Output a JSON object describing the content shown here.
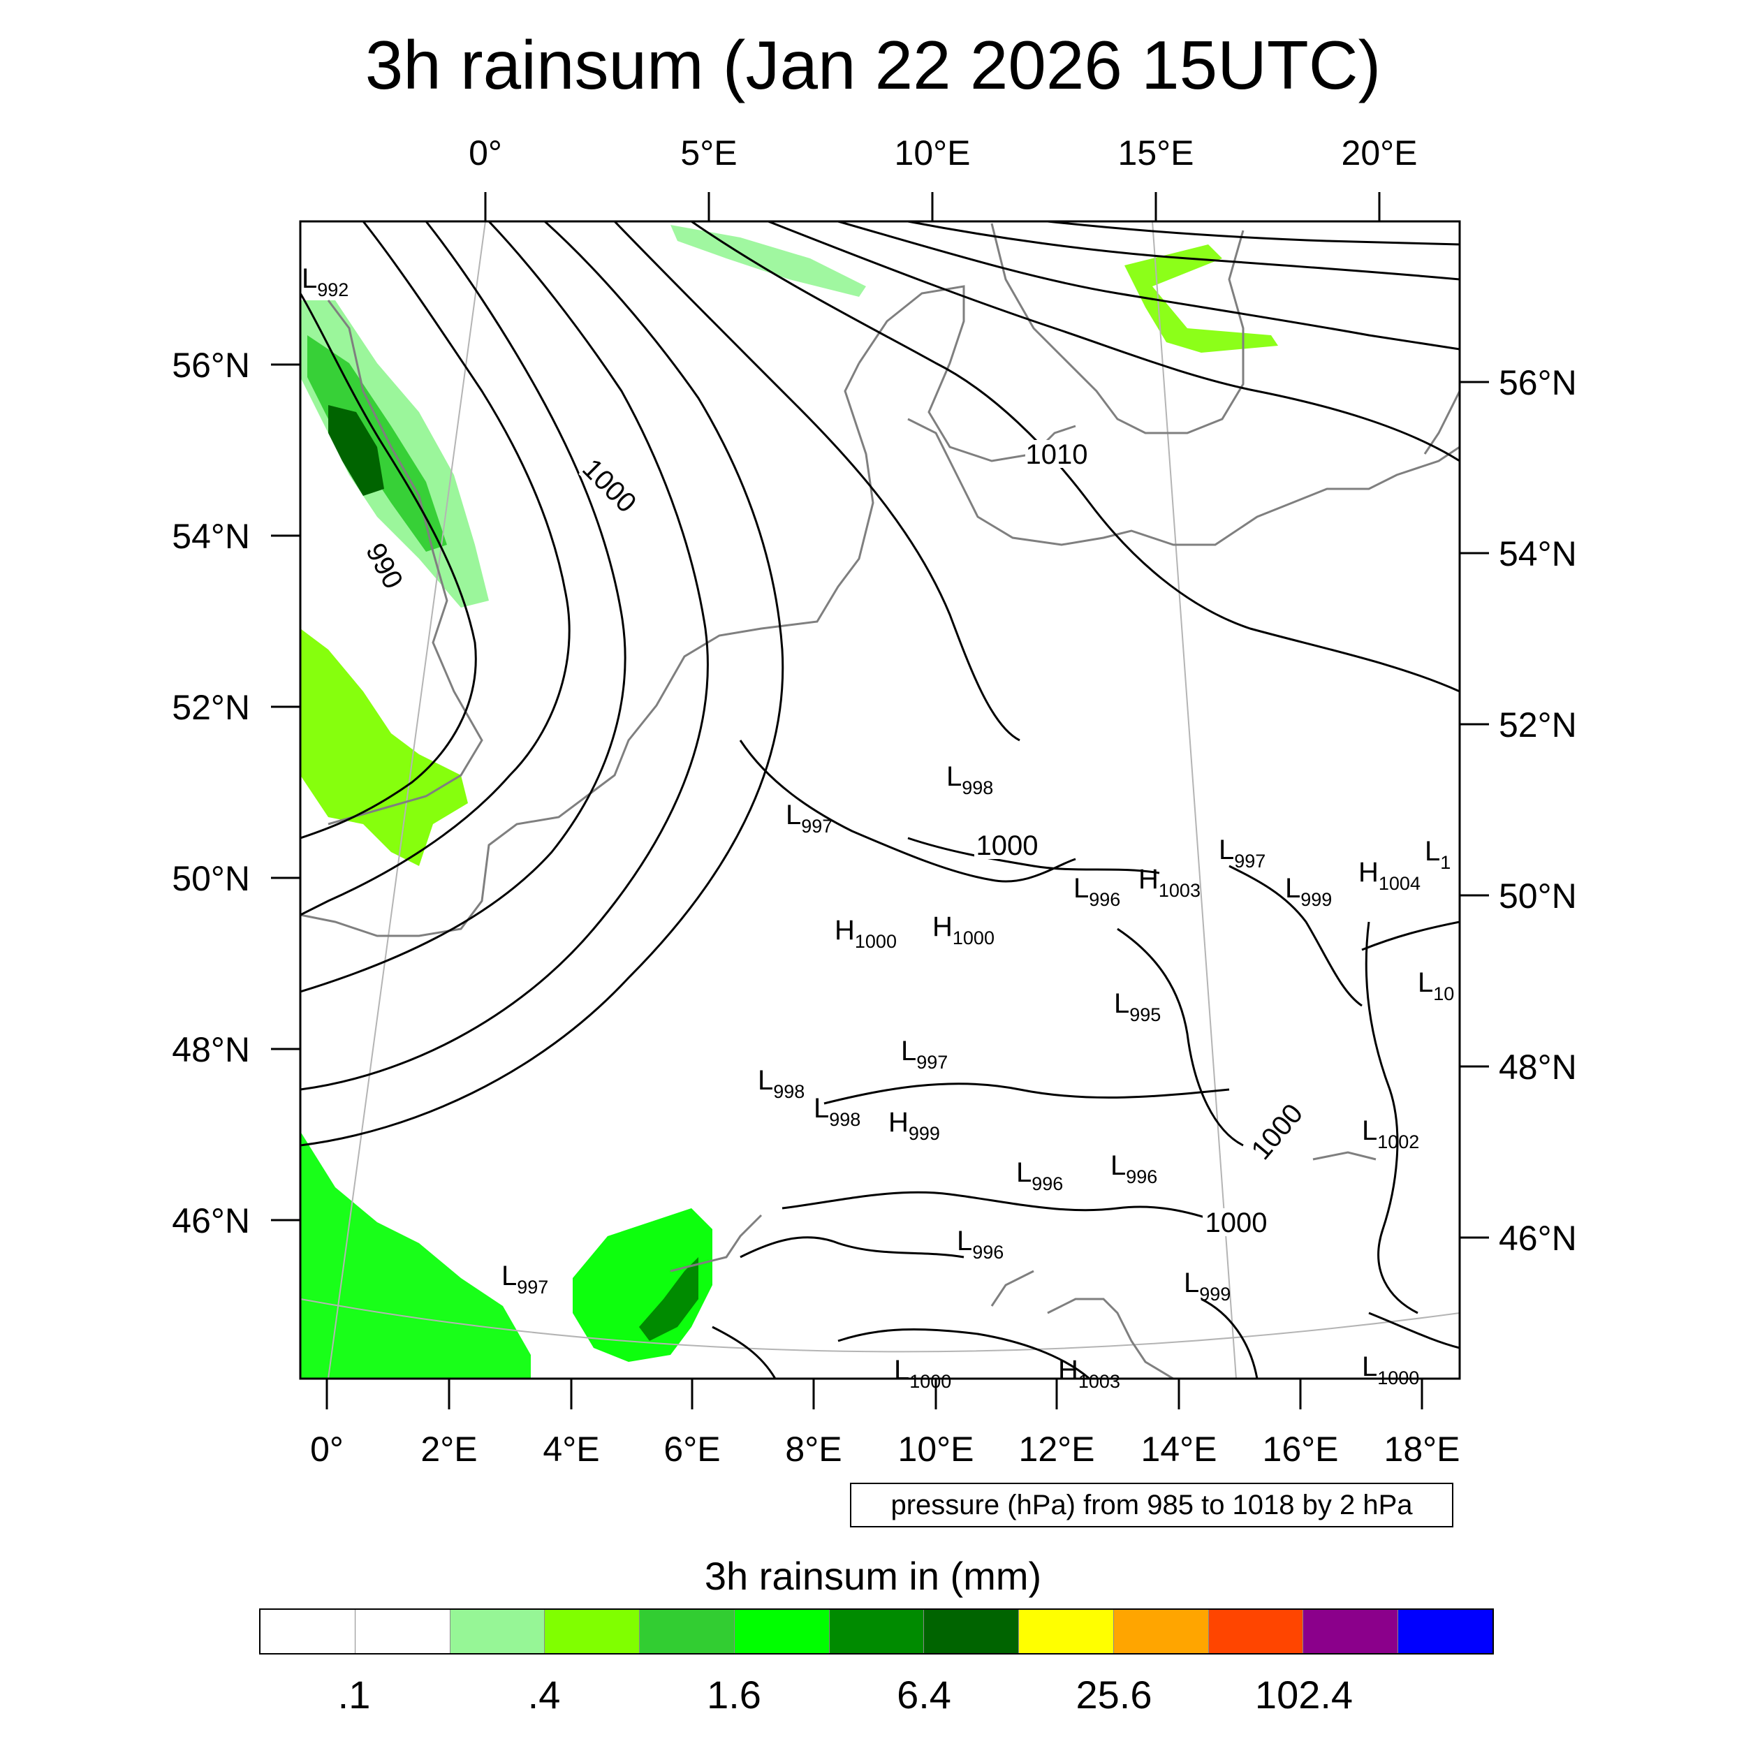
{
  "title": "3h rainsum (Jan 22 2026 15UTC)",
  "pressure_note": "pressure (hPa) from 985 to 1018 by 2 hPa",
  "colorbar": {
    "title": "3h rainsum in (mm)",
    "colors": [
      "#ffffff",
      "#ffffff",
      "#96f696",
      "#80ff00",
      "#32cd32",
      "#00ff00",
      "#008b00",
      "#006400",
      "#ffff00",
      "#ffa500",
      "#ff4500",
      "#8b008b",
      "#0000ff"
    ],
    "labels": [
      {
        "text": ".1",
        "boundary": 1
      },
      {
        "text": ".4",
        "boundary": 3
      },
      {
        "text": "1.6",
        "boundary": 5
      },
      {
        "text": "6.4",
        "boundary": 7
      },
      {
        "text": "25.6",
        "boundary": 9
      },
      {
        "text": "102.4",
        "boundary": 11
      }
    ]
  },
  "axes": {
    "top_lon_labels": [
      "0°",
      "5°E",
      "10°E",
      "15°E",
      "20°E"
    ],
    "bottom_lon_labels": [
      "0°",
      "2°E",
      "4°E",
      "6°E",
      "8°E",
      "10°E",
      "12°E",
      "14°E",
      "16°E",
      "18°E"
    ],
    "left_lat_labels": [
      "56°N",
      "54°N",
      "52°N",
      "50°N",
      "48°N",
      "46°N"
    ],
    "right_lat_labels": [
      "56°N",
      "54°N",
      "52°N",
      "50°N",
      "48°N",
      "46°N"
    ]
  },
  "isobar_labels": [
    {
      "text": "990",
      "rotate": 62
    },
    {
      "text": "1000",
      "rotate": 45
    },
    {
      "text": "1010",
      "rotate": 0
    },
    {
      "text": "1000",
      "rotate": 0
    },
    {
      "text": "1000",
      "rotate": -50
    },
    {
      "text": "1000",
      "rotate": 0
    }
  ],
  "pressure_centers": [
    {
      "type": "L",
      "value": "992"
    },
    {
      "type": "L",
      "value": "997"
    },
    {
      "type": "L",
      "value": "998"
    },
    {
      "type": "H",
      "value": "1000"
    },
    {
      "type": "H",
      "value": "1000"
    },
    {
      "type": "L",
      "value": "996"
    },
    {
      "type": "H",
      "value": "1003"
    },
    {
      "type": "L",
      "value": "997"
    },
    {
      "type": "L",
      "value": "999"
    },
    {
      "type": "H",
      "value": "1004"
    },
    {
      "type": "L",
      "value": "1"
    },
    {
      "type": "L",
      "value": "10"
    },
    {
      "type": "L",
      "value": "995"
    },
    {
      "type": "L",
      "value": "997"
    },
    {
      "type": "L",
      "value": "998"
    },
    {
      "type": "L",
      "value": "998"
    },
    {
      "type": "H",
      "value": "999"
    },
    {
      "type": "L",
      "value": "1002"
    },
    {
      "type": "L",
      "value": "996"
    },
    {
      "type": "L",
      "value": "996"
    },
    {
      "type": "L",
      "value": "996"
    },
    {
      "type": "L",
      "value": "997"
    },
    {
      "type": "L",
      "value": "999"
    },
    {
      "type": "L",
      "value": "1000"
    },
    {
      "type": "L",
      "value": "1000"
    },
    {
      "type": "H",
      "value": "1003"
    }
  ],
  "precip_regions": [
    {
      "name": "north-sea-band",
      "color": "#96f696"
    },
    {
      "name": "north-sea-core",
      "color": "#32cd32"
    },
    {
      "name": "north-sea-max",
      "color": "#006400"
    },
    {
      "name": "english-channel",
      "color": "#80ff00"
    },
    {
      "name": "biscay",
      "color": "#00ff00"
    },
    {
      "name": "gulf-of-lion-core",
      "color": "#00ff00"
    },
    {
      "name": "gulf-of-lion-max",
      "color": "#008b00"
    },
    {
      "name": "skagerrak",
      "color": "#96f696"
    },
    {
      "name": "baltic",
      "color": "#80ff00"
    }
  ]
}
